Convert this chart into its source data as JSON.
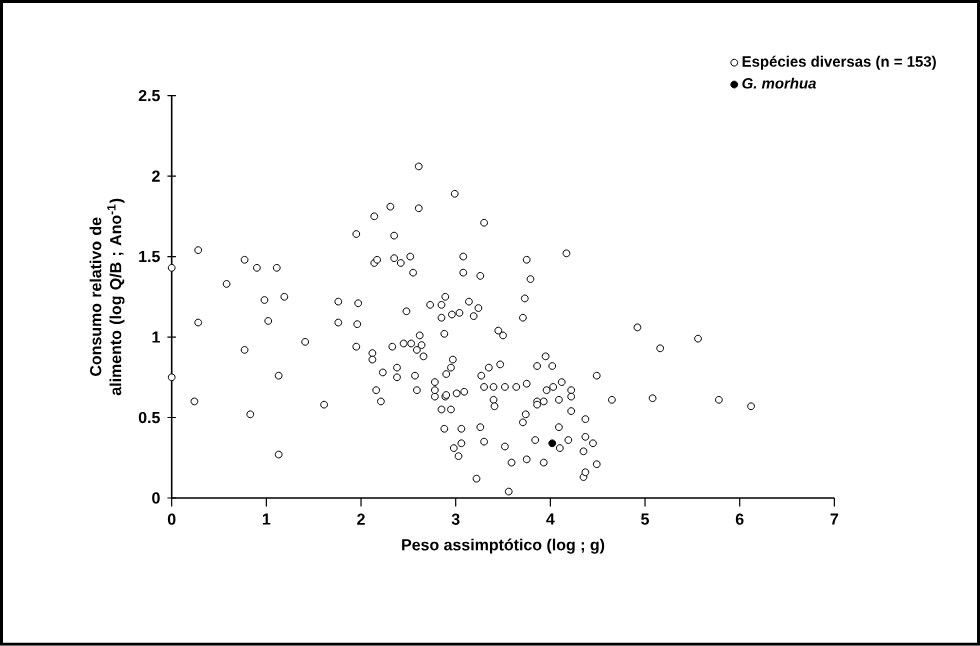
{
  "chart_data": {
    "type": "scatter",
    "xlabel": "Peso assimptótico (log ; g)",
    "ylabel": "Consumo relativo de alimento (log Q/B ; Ano$^{-1}$)",
    "xlim": [
      0,
      7
    ],
    "ylim": [
      0,
      2.5
    ],
    "xticks": [
      0,
      1,
      2,
      3,
      4,
      5,
      6,
      7
    ],
    "yticks": [
      0,
      0.5,
      1,
      1.5,
      2,
      2.5
    ],
    "marker": "circle",
    "legend": "top right",
    "series": [
      {
        "name": "Espécies diversas (n = 153)",
        "color": "#ffffff",
        "x": [
          0,
          0,
          0.28,
          0.28,
          0.24,
          0.58,
          0.77,
          0.9,
          1.11,
          0.98,
          1.19,
          1.02,
          0.77,
          1.13,
          0.83,
          1.13,
          1.41,
          1.61,
          1.76,
          1.76,
          1.97,
          1.96,
          1.95,
          1.95,
          2.14,
          2.31,
          2.61,
          2.61,
          2.35,
          2.14,
          2.17,
          2.35,
          2.42,
          2.52,
          2.55,
          2.48,
          2.33,
          2.45,
          2.53,
          2.62,
          2.64,
          2.59,
          2.66,
          2.12,
          2.12,
          2.23,
          2.38,
          2.38,
          2.57,
          2.16,
          2.21,
          2.59,
          2.73,
          2.85,
          2.89,
          2.85,
          2.88,
          2.78,
          2.78,
          2.89,
          2.85,
          2.88,
          2.99,
          3.3,
          3.08,
          3.08,
          3.26,
          3.75,
          3.79,
          4.17,
          3.73,
          3.71,
          2.96,
          3.04,
          3.14,
          3.19,
          3.24,
          3.45,
          3.5,
          2.97,
          2.95,
          2.9,
          2.78,
          2.9,
          3.01,
          3.09,
          2.95,
          3.06,
          2.98,
          3.06,
          3.03,
          3.27,
          3.35,
          3.47,
          3.3,
          3.4,
          3.52,
          3.64,
          3.75,
          3.4,
          3.41,
          3.74,
          3.71,
          3.26,
          3.3,
          3.52,
          3.59,
          3.22,
          3.56,
          3.75,
          3.93,
          3.84,
          3.86,
          3.95,
          4.02,
          3.96,
          4.03,
          3.86,
          3.93,
          3.86,
          4.09,
          4.12,
          4.22,
          4.22,
          4.22,
          4.09,
          4.1,
          4.19,
          4.37,
          4.37,
          4.45,
          4.35,
          4.49,
          4.35,
          4.37,
          4.49,
          4.65,
          4.92,
          5.08,
          5.16,
          5.56,
          5.78,
          6.12
        ],
        "values": [
          1.43,
          0.75,
          1.54,
          1.09,
          0.6,
          1.33,
          1.48,
          1.43,
          1.43,
          1.23,
          1.25,
          1.1,
          0.92,
          0.76,
          0.52,
          0.27,
          0.97,
          0.58,
          1.22,
          1.09,
          1.21,
          1.08,
          0.94,
          1.64,
          1.75,
          1.81,
          1.8,
          2.06,
          1.63,
          1.46,
          1.48,
          1.49,
          1.46,
          1.5,
          1.4,
          1.16,
          0.94,
          0.96,
          0.96,
          1.01,
          0.95,
          0.92,
          0.88,
          0.9,
          0.86,
          0.78,
          0.81,
          0.75,
          0.76,
          0.67,
          0.6,
          0.67,
          1.2,
          1.2,
          1.25,
          1.12,
          1.02,
          0.72,
          0.63,
          0.63,
          0.55,
          0.43,
          1.89,
          1.71,
          1.5,
          1.4,
          1.38,
          1.48,
          1.36,
          1.52,
          1.24,
          1.12,
          1.14,
          1.15,
          1.22,
          1.13,
          1.18,
          1.04,
          1.01,
          0.86,
          0.81,
          0.77,
          0.67,
          0.64,
          0.65,
          0.66,
          0.55,
          0.43,
          0.31,
          0.34,
          0.26,
          0.76,
          0.81,
          0.83,
          0.69,
          0.69,
          0.69,
          0.69,
          0.71,
          0.61,
          0.57,
          0.52,
          0.47,
          0.44,
          0.35,
          0.32,
          0.22,
          0.12,
          0.04,
          0.24,
          0.22,
          0.36,
          0.82,
          0.88,
          0.82,
          0.67,
          0.69,
          0.6,
          0.6,
          0.58,
          0.61,
          0.72,
          0.67,
          0.63,
          0.54,
          0.44,
          0.31,
          0.36,
          0.49,
          0.38,
          0.34,
          0.29,
          0.21,
          0.13,
          0.16,
          0.76,
          0.61,
          1.06,
          0.62,
          0.93,
          0.99,
          0.61,
          0.57
        ]
      },
      {
        "name": "G. morhua",
        "color": "#000000",
        "x": [
          4.02
        ],
        "values": [
          0.34
        ]
      }
    ]
  }
}
